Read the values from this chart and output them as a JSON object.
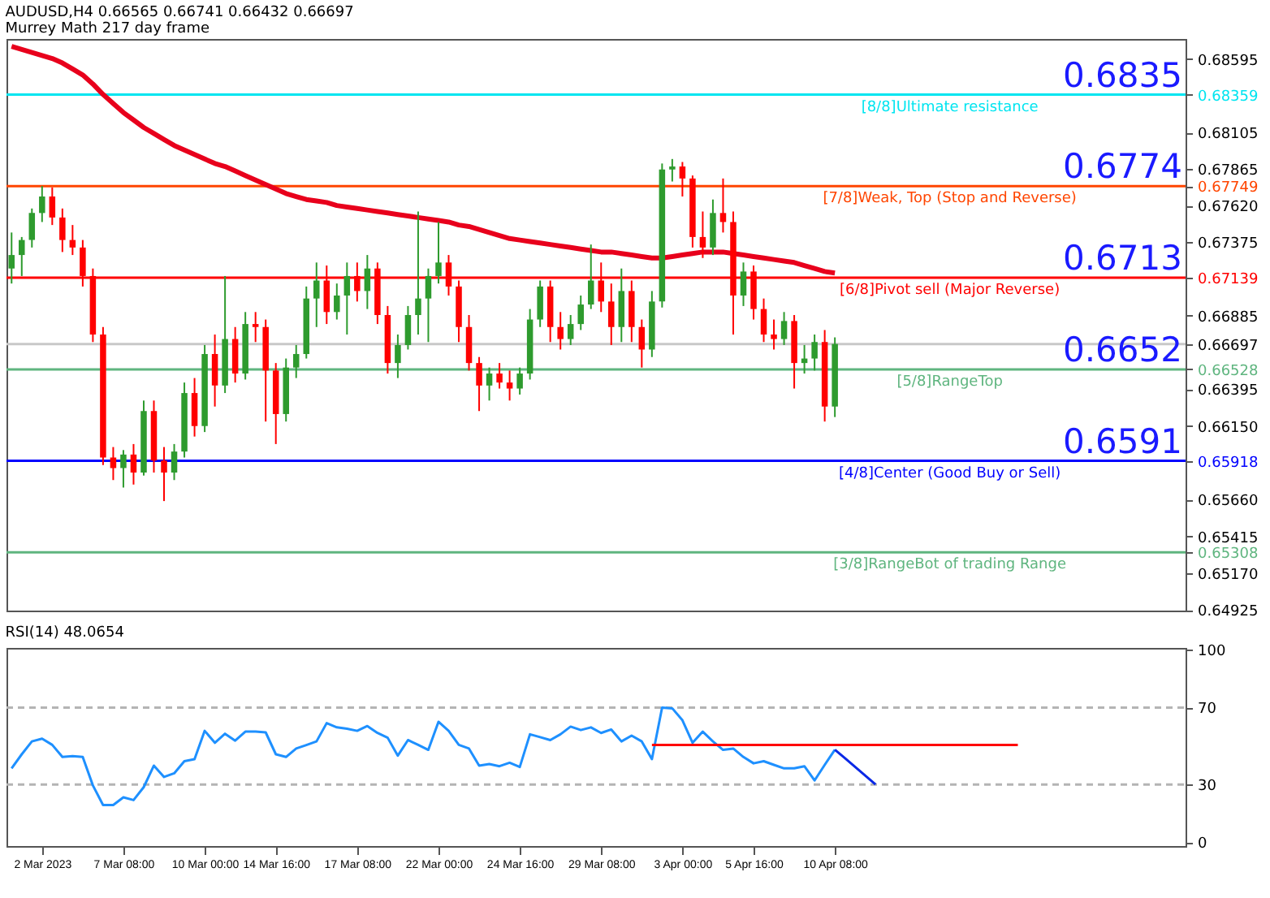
{
  "chart_data": [
    {
      "type": "candlestick",
      "title": "AUDUSD,H4  0.66565 0.66741 0.66432 0.66697",
      "subtitle": "Murrey Math 217 day frame",
      "categories": [
        null,
        null,
        null,
        null,
        null,
        null,
        null,
        null,
        null,
        null,
        null,
        null,
        null,
        null,
        null,
        null,
        null,
        null,
        null,
        null,
        null,
        null,
        null,
        null,
        null,
        null,
        null,
        null,
        null,
        null,
        null,
        null,
        null,
        null,
        null,
        null,
        null,
        null,
        null,
        null,
        null,
        null,
        null,
        null,
        null,
        null,
        null,
        null,
        null,
        null,
        null,
        null,
        null,
        null,
        null,
        null,
        null,
        null,
        null,
        null,
        null,
        null,
        null,
        null,
        null,
        null,
        null,
        null,
        null,
        null,
        null,
        null,
        null,
        null,
        null,
        null,
        null,
        null,
        null,
        null,
        null,
        null,
        null,
        null,
        null,
        null,
        null,
        null,
        null,
        null,
        null,
        null,
        null,
        null,
        null,
        null,
        null,
        null,
        null,
        null,
        null,
        null,
        null,
        null,
        null,
        null,
        null,
        null,
        null,
        null,
        null,
        null,
        null,
        null,
        null,
        null
      ],
      "ohlc": [
        [
          0.672,
          0.6744,
          0.671,
          0.6729
        ],
        [
          0.6729,
          0.6741,
          0.6715,
          0.6739
        ],
        [
          0.6739,
          0.676,
          0.6734,
          0.6757
        ],
        [
          0.6757,
          0.6775,
          0.6751,
          0.6768
        ],
        [
          0.6768,
          0.6774,
          0.6749,
          0.6754
        ],
        [
          0.6754,
          0.676,
          0.6731,
          0.6739
        ],
        [
          0.6739,
          0.6749,
          0.6729,
          0.6734
        ],
        [
          0.6734,
          0.6739,
          0.6708,
          0.6715
        ],
        [
          0.6715,
          0.672,
          0.6671,
          0.6676
        ],
        [
          0.6676,
          0.6681,
          0.6589,
          0.6594
        ],
        [
          0.6594,
          0.6601,
          0.6579,
          0.6587
        ],
        [
          0.6587,
          0.6599,
          0.6574,
          0.6596
        ],
        [
          0.6596,
          0.6603,
          0.6576,
          0.6584
        ],
        [
          0.6584,
          0.6632,
          0.6582,
          0.6625
        ],
        [
          0.6625,
          0.6632,
          0.6584,
          0.6592
        ],
        [
          0.6592,
          0.6601,
          0.6565,
          0.6584
        ],
        [
          0.6584,
          0.6603,
          0.6579,
          0.6598
        ],
        [
          0.6598,
          0.6644,
          0.6594,
          0.6637
        ],
        [
          0.6637,
          0.6647,
          0.6608,
          0.6615
        ],
        [
          0.6615,
          0.6669,
          0.6611,
          0.6663
        ],
        [
          0.6663,
          0.6676,
          0.6628,
          0.6642
        ],
        [
          0.6642,
          0.6715,
          0.6637,
          0.6673
        ],
        [
          0.6673,
          0.6681,
          0.6644,
          0.665
        ],
        [
          0.665,
          0.6691,
          0.6646,
          0.6683
        ],
        [
          0.6683,
          0.6691,
          0.6671,
          0.6681
        ],
        [
          0.6681,
          0.6686,
          0.6618,
          0.6652
        ],
        [
          0.6652,
          0.6657,
          0.6603,
          0.6623
        ],
        [
          0.6623,
          0.666,
          0.6618,
          0.6654
        ],
        [
          0.6654,
          0.6669,
          0.6647,
          0.6663
        ],
        [
          0.6663,
          0.6708,
          0.666,
          0.67
        ],
        [
          0.67,
          0.6724,
          0.6681,
          0.6712
        ],
        [
          0.6712,
          0.6722,
          0.6683,
          0.6691
        ],
        [
          0.6691,
          0.671,
          0.6686,
          0.6702
        ],
        [
          0.6702,
          0.6724,
          0.6676,
          0.6715
        ],
        [
          0.6715,
          0.6724,
          0.6698,
          0.6705
        ],
        [
          0.6705,
          0.6729,
          0.6693,
          0.672
        ],
        [
          0.672,
          0.6724,
          0.6683,
          0.6689
        ],
        [
          0.6689,
          0.6695,
          0.665,
          0.6657
        ],
        [
          0.6657,
          0.6676,
          0.6647,
          0.6669
        ],
        [
          0.6669,
          0.6695,
          0.6666,
          0.6689
        ],
        [
          0.6689,
          0.6758,
          0.6676,
          0.67
        ],
        [
          0.67,
          0.672,
          0.6671,
          0.6715
        ],
        [
          0.6715,
          0.6751,
          0.671,
          0.6724
        ],
        [
          0.6724,
          0.6729,
          0.6702,
          0.6708
        ],
        [
          0.6708,
          0.6712,
          0.6671,
          0.6681
        ],
        [
          0.6681,
          0.6689,
          0.6652,
          0.6657
        ],
        [
          0.6657,
          0.6661,
          0.6625,
          0.6642
        ],
        [
          0.6642,
          0.6654,
          0.6632,
          0.665
        ],
        [
          0.665,
          0.6657,
          0.664,
          0.6644
        ],
        [
          0.6644,
          0.6652,
          0.6632,
          0.664
        ],
        [
          0.664,
          0.6654,
          0.6636,
          0.665
        ],
        [
          0.665,
          0.6693,
          0.6646,
          0.6686
        ],
        [
          0.6686,
          0.6712,
          0.6681,
          0.6708
        ],
        [
          0.6708,
          0.6712,
          0.6671,
          0.6681
        ],
        [
          0.6681,
          0.6691,
          0.6666,
          0.6673
        ],
        [
          0.6673,
          0.6689,
          0.6669,
          0.6683
        ],
        [
          0.6683,
          0.6702,
          0.6679,
          0.6696
        ],
        [
          0.6696,
          0.6736,
          0.6693,
          0.6712
        ],
        [
          0.6712,
          0.6724,
          0.6691,
          0.6698
        ],
        [
          0.6698,
          0.671,
          0.6669,
          0.6681
        ],
        [
          0.6681,
          0.672,
          0.6671,
          0.6705
        ],
        [
          0.6705,
          0.6712,
          0.6671,
          0.6681
        ],
        [
          0.6681,
          0.6686,
          0.6654,
          0.6666
        ],
        [
          0.6666,
          0.6705,
          0.6661,
          0.6698
        ],
        [
          0.6698,
          0.679,
          0.6694,
          0.6786
        ],
        [
          0.6786,
          0.6793,
          0.6778,
          0.6788
        ],
        [
          0.6788,
          0.6791,
          0.6768,
          0.678
        ],
        [
          0.678,
          0.6782,
          0.6734,
          0.6741
        ],
        [
          0.6741,
          0.6758,
          0.6727,
          0.6734
        ],
        [
          0.6734,
          0.6766,
          0.6729,
          0.6757
        ],
        [
          0.6757,
          0.678,
          0.6744,
          0.6751
        ],
        [
          0.6751,
          0.6758,
          0.6676,
          0.6702
        ],
        [
          0.6702,
          0.6724,
          0.6695,
          0.6718
        ],
        [
          0.6718,
          0.6722,
          0.6686,
          0.6693
        ],
        [
          0.6693,
          0.67,
          0.6671,
          0.6676
        ],
        [
          0.6676,
          0.6686,
          0.6666,
          0.6673
        ],
        [
          0.6673,
          0.6691,
          0.6669,
          0.6685
        ],
        [
          0.6685,
          0.6689,
          0.664,
          0.6657
        ],
        [
          0.6657,
          0.6669,
          0.665,
          0.666
        ],
        [
          0.666,
          0.6676,
          0.6652,
          0.6671
        ],
        [
          0.6671,
          0.6679,
          0.6618,
          0.6628
        ],
        [
          0.6628,
          0.66741,
          0.6621,
          0.66697
        ],
        null,
        null,
        null,
        null,
        null,
        null,
        null,
        null,
        null,
        null,
        null,
        null,
        null,
        null,
        null,
        null,
        null,
        null,
        null,
        null,
        null,
        null,
        null,
        null,
        null,
        null,
        null,
        null,
        null,
        null,
        null,
        null,
        null,
        null
      ],
      "colors": [
        "#2e9b2e",
        "#2e9b2e",
        "#2e9b2e",
        "#2e9b2e",
        "#ff0000",
        "#ff0000",
        "#ff0000",
        "#ff0000",
        "#ff0000",
        "#ff0000",
        "#ff0000",
        "#2e9b2e",
        "#ff0000",
        "#2e9b2e",
        "#ff0000",
        "#ff0000",
        "#2e9b2e",
        "#2e9b2e",
        "#ff0000",
        "#2e9b2e",
        "#ff0000",
        "#2e9b2e",
        "#ff0000",
        "#2e9b2e",
        "#ff0000",
        "#ff0000",
        "#ff0000",
        "#2e9b2e",
        "#2e9b2e",
        "#2e9b2e",
        "#2e9b2e",
        "#ff0000",
        "#2e9b2e",
        "#2e9b2e",
        "#ff0000",
        "#2e9b2e",
        "#ff0000",
        "#ff0000",
        "#2e9b2e",
        "#2e9b2e",
        "#2e9b2e",
        "#2e9b2e",
        "#2e9b2e",
        "#ff0000",
        "#ff0000",
        "#ff0000",
        "#ff0000",
        "#2e9b2e",
        "#ff0000",
        "#ff0000",
        "#2e9b2e",
        "#2e9b2e",
        "#2e9b2e",
        "#ff0000",
        "#ff0000",
        "#2e9b2e",
        "#2e9b2e",
        "#2e9b2e",
        "#ff0000",
        "#ff0000",
        "#2e9b2e",
        "#ff0000",
        "#ff0000",
        "#2e9b2e",
        "#2e9b2e",
        "#2e9b2e",
        "#ff0000",
        "#ff0000",
        "#ff0000",
        "#2e9b2e",
        "#ff0000",
        "#ff0000",
        "#2e9b2e",
        "#ff0000",
        "#ff0000",
        "#ff0000",
        "#2e9b2e",
        "#ff0000",
        "#2e9b2e",
        "#2e9b2e",
        "#ff0000",
        "#2e9b2e",
        null,
        null,
        null,
        null,
        null,
        null,
        null,
        null,
        null,
        null,
        null,
        null,
        null,
        null,
        null,
        null,
        null,
        null,
        null,
        null,
        null,
        null,
        null,
        null,
        null,
        null,
        null,
        null,
        null,
        null,
        null,
        null,
        null,
        null
      ],
      "series": [
        {
          "type": "line",
          "color": "#e8001c",
          "values": [
            0.6868,
            0.6866,
            0.6864,
            0.6862,
            0.686,
            0.6857,
            0.6853,
            0.6849,
            0.6843,
            0.6836,
            0.683,
            0.6824,
            0.6819,
            0.6814,
            0.681,
            0.6806,
            0.6802,
            0.6799,
            0.6796,
            0.6793,
            0.679,
            0.6788,
            0.6785,
            0.6782,
            0.6779,
            0.6776,
            0.6773,
            0.677,
            0.6768,
            0.6766,
            0.6765,
            0.6764,
            0.6762,
            0.6761,
            0.676,
            0.6759,
            0.6758,
            0.6757,
            0.6756,
            0.6755,
            0.6754,
            0.6753,
            0.6752,
            0.6751,
            0.6749,
            0.6748,
            0.6746,
            0.6744,
            0.6742,
            0.674,
            0.6739,
            0.6738,
            0.6737,
            0.6736,
            0.6735,
            0.6734,
            0.6733,
            0.6732,
            0.6731,
            0.6731,
            0.673,
            0.6729,
            0.6728,
            0.6727,
            0.6727,
            0.6728,
            0.6729,
            0.673,
            0.6731,
            0.6731,
            0.6731,
            0.673,
            0.6729,
            0.6728,
            0.6727,
            0.6726,
            0.6725,
            0.6724,
            0.6722,
            0.672,
            0.6718,
            0.6717,
            null,
            null,
            null,
            null,
            null,
            null,
            null,
            null,
            null,
            null,
            null,
            null,
            null,
            null,
            null,
            null,
            null,
            null,
            null,
            null,
            null,
            null,
            null,
            null,
            null,
            null,
            null,
            null,
            null,
            null,
            null,
            null,
            null,
            null
          ]
        }
      ],
      "ylim": [
        0.6492,
        0.6873
      ],
      "yticks": [
        0.68595,
        0.68359,
        0.68105,
        0.67865,
        0.67749,
        0.67139,
        0.66697,
        0.66528,
        0.65918,
        0.65308,
        {
          "value": 0.6762,
          "label": "0.67620"
        },
        0.67375,
        0.66885,
        0.66395,
        {
          "value": 0.6615,
          "label": "0.66150"
        },
        {
          "value": 0.6566,
          "label": "0.65660"
        },
        0.65415,
        {
          "value": 0.6517,
          "label": "0.65170"
        },
        0.64925
      ],
      "ref_lines": [
        {
          "axis": "y",
          "value": 0.68359,
          "label": "[8/8]Ultimate resistance",
          "color": "#00e5f0"
        },
        {
          "axis": "y",
          "value": 0.67749,
          "label": "[7/8]Weak, Top (Stop and Reverse)",
          "color": "#ff4500"
        },
        {
          "axis": "y",
          "value": 0.67139,
          "label": "[6/8]Pivot sell (Major Reverse)",
          "color": "#ff0000"
        },
        {
          "axis": "y",
          "value": 0.66697,
          "label": null,
          "color": "#c8c8c8"
        },
        {
          "axis": "y",
          "value": 0.66528,
          "label": "[5/8]RangeTop",
          "color": "#5fb57f"
        },
        {
          "axis": "y",
          "value": 0.65918,
          "label": "[4/8]Center (Good Buy or Sell)",
          "color": "#0000ff"
        },
        {
          "axis": "y",
          "value": 0.65308,
          "label": "[3/8]RangeBot of trading Range",
          "color": "#5fb57f"
        }
      ],
      "annotations": [
        {
          "text": "0.6835",
          "y": 0.68359
        },
        {
          "text": "0.6774",
          "y": 0.67749
        },
        {
          "text": "0.6713",
          "y": 0.67139
        },
        {
          "text": "0.6652",
          "y": 0.66528
        },
        {
          "text": "0.6591",
          "y": 0.65918
        }
      ]
    },
    {
      "type": "line",
      "title": "RSI(14) 48.0654",
      "categories": [
        null,
        null,
        null,
        "2 Mar 2023",
        null,
        null,
        null,
        null,
        null,
        null,
        null,
        "7 Mar 08:00",
        null,
        null,
        null,
        null,
        null,
        null,
        null,
        "10 Mar 00:00",
        null,
        null,
        null,
        null,
        null,
        null,
        "14 Mar 16:00",
        null,
        null,
        null,
        null,
        null,
        null,
        null,
        "17 Mar 08:00",
        null,
        null,
        null,
        null,
        null,
        null,
        null,
        "22 Mar 00:00",
        null,
        null,
        null,
        null,
        null,
        null,
        null,
        "24 Mar 16:00",
        null,
        null,
        null,
        null,
        null,
        null,
        null,
        "29 Mar 08:00",
        null,
        null,
        null,
        null,
        null,
        null,
        null,
        "3 Apr 00:00",
        null,
        null,
        null,
        null,
        null,
        null,
        "5 Apr 16:00",
        null,
        null,
        null,
        null,
        null,
        null,
        null,
        "10 Apr 08:00",
        null,
        null,
        null,
        null,
        null,
        null,
        null,
        null,
        null,
        null,
        null,
        null,
        null,
        null,
        null,
        null,
        null,
        null,
        null,
        null,
        null,
        null,
        null,
        null,
        null,
        null,
        null,
        null,
        null,
        null,
        null,
        null,
        null,
        null
      ],
      "series": [
        {
          "color": "#1e90ff",
          "values": [
            38.4,
            45.7,
            52.4,
            53.8,
            50.6,
            44.3,
            44.7,
            44.3,
            29.5,
            19.3,
            19.3,
            23.3,
            21.9,
            28.6,
            39.8,
            33.9,
            35.8,
            42.1,
            43.2,
            57.9,
            51.7,
            56.4,
            52.8,
            57.5,
            57.5,
            57.1,
            45.7,
            44.3,
            48.7,
            50.5,
            52.4,
            61.9,
            59.7,
            59.0,
            57.9,
            60.4,
            56.8,
            54.3,
            45.0,
            53.1,
            50.6,
            48.0,
            62.6,
            57.9,
            50.6,
            48.7,
            39.8,
            40.6,
            39.5,
            41.3,
            39.1,
            56.1,
            54.6,
            53.1,
            56.1,
            60.1,
            58.3,
            59.7,
            56.8,
            58.6,
            52.4,
            55.4,
            52.4,
            43.2,
            70.0,
            69.6,
            63.4,
            51.7,
            57.5,
            52.4,
            48.0,
            48.7,
            44.3,
            41.0,
            42.1,
            40.2,
            38.4,
            38.4,
            39.5,
            32.1,
            40.2,
            48.1,
            null,
            null,
            null,
            null,
            null,
            null,
            null,
            null,
            null,
            null,
            null,
            null,
            null,
            null,
            null,
            null,
            null,
            null,
            null,
            null,
            null,
            null,
            null,
            null,
            null,
            null,
            null,
            null,
            null,
            null,
            null,
            null,
            null,
            null
          ]
        },
        {
          "color": "#ff0000",
          "values": [
            null,
            null,
            null,
            null,
            null,
            null,
            null,
            null,
            null,
            null,
            null,
            null,
            null,
            null,
            null,
            null,
            null,
            null,
            null,
            null,
            null,
            null,
            null,
            null,
            null,
            null,
            null,
            null,
            null,
            null,
            null,
            null,
            null,
            null,
            null,
            null,
            null,
            null,
            null,
            null,
            null,
            null,
            null,
            null,
            null,
            null,
            null,
            null,
            null,
            null,
            null,
            null,
            null,
            null,
            null,
            null,
            null,
            null,
            null,
            null,
            null,
            null,
            null,
            50.6,
            50.6,
            50.6,
            50.6,
            50.6,
            50.6,
            50.6,
            50.6,
            50.6,
            50.6,
            50.6,
            50.6,
            50.6,
            50.6,
            50.6,
            50.6,
            50.6,
            50.6,
            50.6,
            50.6,
            50.6,
            50.6,
            50.6,
            50.6,
            50.6,
            50.6,
            50.6,
            50.6,
            50.6,
            50.6,
            50.6,
            50.6,
            50.6,
            50.6,
            50.6,
            50.6,
            50.6,
            null,
            null,
            null,
            null,
            null,
            null,
            null,
            null,
            null,
            null,
            null,
            null,
            null,
            null,
            null,
            null
          ]
        },
        {
          "color": "#0a28e6",
          "values": [
            null,
            null,
            null,
            null,
            null,
            null,
            null,
            null,
            null,
            null,
            null,
            null,
            null,
            null,
            null,
            null,
            null,
            null,
            null,
            null,
            null,
            null,
            null,
            null,
            null,
            null,
            null,
            null,
            null,
            null,
            null,
            null,
            null,
            null,
            null,
            null,
            null,
            null,
            null,
            null,
            null,
            null,
            null,
            null,
            null,
            null,
            null,
            null,
            null,
            null,
            null,
            null,
            null,
            null,
            null,
            null,
            null,
            null,
            null,
            null,
            null,
            null,
            null,
            null,
            null,
            null,
            null,
            null,
            null,
            null,
            null,
            null,
            null,
            null,
            null,
            null,
            null,
            null,
            null,
            null,
            null,
            48.1,
            43.6,
            39.1,
            34.6,
            30.0,
            null,
            null,
            null,
            null,
            null,
            null,
            null,
            null,
            null,
            null,
            null,
            null,
            null,
            null,
            null,
            null,
            null,
            null,
            null,
            null,
            null,
            null,
            null,
            null,
            null,
            null,
            null,
            null,
            null,
            null
          ]
        }
      ],
      "ylim": [
        -2,
        101
      ],
      "yticks": [
        100,
        70,
        30,
        0
      ],
      "ref_lines": [
        {
          "axis": "y",
          "value": 70,
          "label": null,
          "color": "#b4b4b4",
          "line_style": "dashed"
        },
        {
          "axis": "y",
          "value": 30,
          "label": null,
          "color": "#b4b4b4",
          "line_style": "dashed"
        }
      ]
    }
  ]
}
